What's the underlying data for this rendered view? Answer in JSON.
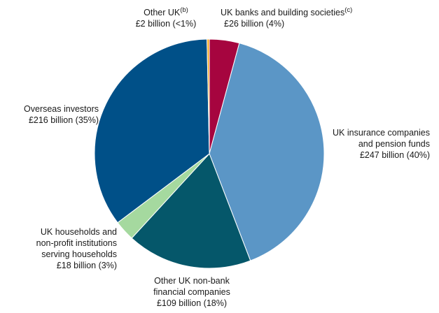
{
  "chart_data": {
    "type": "pie",
    "slices": [
      {
        "label": "UK banks and building societies",
        "note": "(c)",
        "value_text": "£26 billion (4%)",
        "value": 26,
        "percent": 4,
        "color": "#a6053f"
      },
      {
        "label": "UK insurance companies and pension funds",
        "value_text": "£247 billion (40%)",
        "value": 247,
        "percent": 40,
        "color": "#5b96c6"
      },
      {
        "label": "Other UK non-bank financial companies",
        "value_text": "£109 billion (18%)",
        "value": 109,
        "percent": 18,
        "color": "#05576a"
      },
      {
        "label": "UK households and non-profit institutions serving households",
        "value_text": "£18 billion (3%)",
        "value": 18,
        "percent": 3,
        "color": "#a5d99f"
      },
      {
        "label": "Overseas investors",
        "value_text": "£216 billion (35%)",
        "value": 216,
        "percent": 35,
        "color": "#005088"
      },
      {
        "label": "Other UK",
        "note": "(b)",
        "value_text": "£2 billion (<1%)",
        "value": 2,
        "percent": 0.3,
        "color": "#f5a81c"
      }
    ],
    "labels": {
      "banks": {
        "line1": "UK banks and building societies",
        "note": "(c)",
        "line2": "£26 billion (4%)"
      },
      "insurance": {
        "line1": "UK insurance companies",
        "line2": "and pension funds",
        "line3": "£247 billion (40%)"
      },
      "nonbank": {
        "line1": "Other UK non-bank",
        "line2": "financial companies",
        "line3": "£109 billion (18%)"
      },
      "households": {
        "line1": "UK households and",
        "line2": "non-profit institutions",
        "line3": "serving households",
        "line4": "£18 billion (3%)"
      },
      "overseas": {
        "line1": "Overseas investors",
        "line2": "£216 billion (35%)"
      },
      "otheruk": {
        "line1": "Other UK",
        "note": "(b)",
        "line2": "£2 billion (<1%)"
      }
    }
  }
}
